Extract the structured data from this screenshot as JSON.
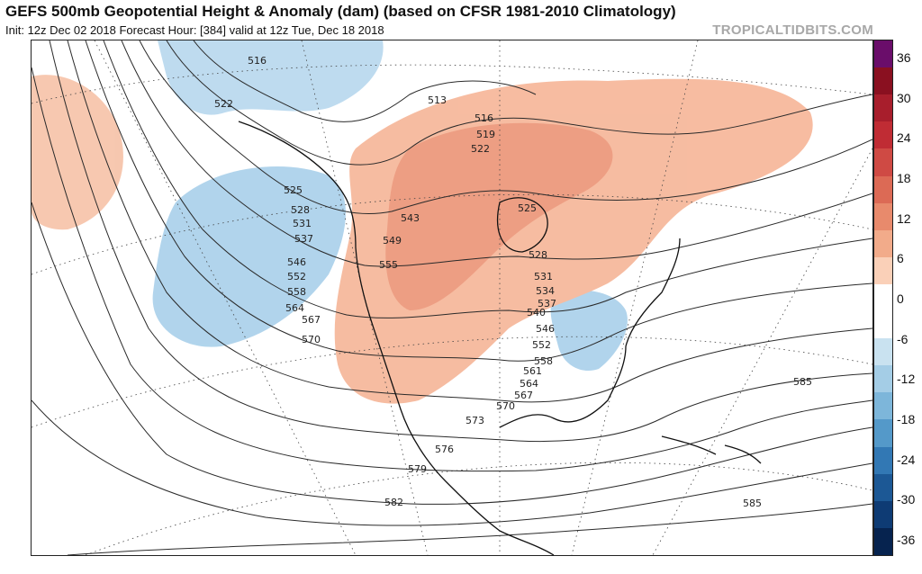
{
  "header": {
    "title": "GEFS 500mb Geopotential Height & Anomaly (dam) (based on CFSR 1981-2010 Climatology)",
    "subtitle": "Init: 12z Dec 02 2018   Forecast Hour: [384]   valid at 12z Tue, Dec 18 2018",
    "brand": "TROPICALTIDBITS.COM"
  },
  "colorbar": {
    "labels": [
      "36",
      "30",
      "24",
      "18",
      "12",
      "6",
      "0",
      "-6",
      "-12",
      "-18",
      "-24",
      "-30",
      "-36"
    ],
    "colors": [
      "#6a0d6a",
      "#8a1020",
      "#a81e2c",
      "#c02c34",
      "#cf4a44",
      "#dc6a55",
      "#e88a6c",
      "#f2ab8a",
      "#fad0b8",
      "#ffffff",
      "#ffffff",
      "#c9e2f0",
      "#a4cde6",
      "#7db6da",
      "#5499c9",
      "#3278b4",
      "#1c5895",
      "#0e3b74",
      "#06234f"
    ]
  },
  "map": {
    "contour_labels": [
      "516",
      "522",
      "513",
      "516",
      "519",
      "522",
      "525",
      "528",
      "531",
      "537",
      "546",
      "552",
      "558",
      "564",
      "567",
      "570",
      "543",
      "549",
      "555",
      "525",
      "528",
      "531",
      "534",
      "537",
      "540",
      "546",
      "552",
      "558",
      "561",
      "564",
      "567",
      "570",
      "573",
      "576",
      "579",
      "582",
      "585",
      "585"
    ]
  }
}
